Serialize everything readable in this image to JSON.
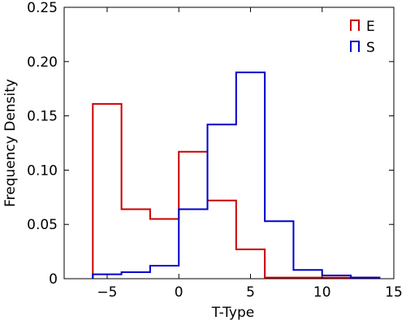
{
  "chart_data": {
    "type": "histogram",
    "xlabel": "T-Type",
    "ylabel": "Frequency Density",
    "xlim": [
      -8,
      15
    ],
    "ylim": [
      0,
      0.25
    ],
    "x_ticks": [
      -5,
      0,
      5,
      10,
      15
    ],
    "x_tick_labels": [
      "−5",
      "0",
      "5",
      "10",
      "15"
    ],
    "y_ticks": [
      0,
      0.05,
      0.1,
      0.15,
      0.2,
      0.25
    ],
    "y_tick_labels": [
      "0",
      "0.05",
      "0.10",
      "0.15",
      "0.20",
      "0.25"
    ],
    "legend_position": "top-right",
    "grid": false,
    "series": [
      {
        "name": "E",
        "color": "#cc0000",
        "bin_edges": [
          -6,
          -4,
          -2,
          0,
          2,
          4,
          6,
          8,
          10,
          12,
          14
        ],
        "values": [
          0.161,
          0.064,
          0.055,
          0.117,
          0.072,
          0.027,
          0.001,
          0.001,
          0.001,
          0.001
        ]
      },
      {
        "name": "S",
        "color": "#0000cc",
        "bin_edges": [
          -6,
          -4,
          -2,
          0,
          2,
          4,
          6,
          8,
          10,
          12,
          14
        ],
        "values": [
          0.004,
          0.006,
          0.012,
          0.064,
          0.142,
          0.19,
          0.053,
          0.008,
          0.003,
          0.001
        ]
      }
    ]
  }
}
